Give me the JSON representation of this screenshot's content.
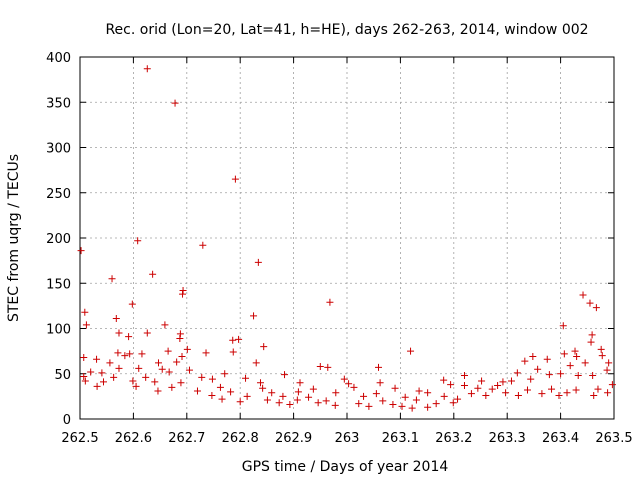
{
  "chart_data": {
    "type": "scatter",
    "title": "Rec. orid (Lon=20, Lat=41, h=HE), days 262-263, 2014, window 002",
    "xlabel": "GPS time / Days of year 2014",
    "ylabel": "STEC from uqrg / TECUs",
    "xlim": [
      262.5,
      263.5
    ],
    "ylim": [
      0,
      400
    ],
    "x_ticks": [
      262.5,
      262.6,
      262.7,
      262.8,
      262.9,
      263.0,
      263.1,
      263.2,
      263.3,
      263.4,
      263.5
    ],
    "x_tick_labels": [
      "262.5",
      "262.6",
      "262.7",
      "262.8",
      "262.9",
      "263",
      "263.1",
      "263.2",
      "263.3",
      "263.4",
      "263.5"
    ],
    "y_ticks": [
      0,
      50,
      100,
      150,
      200,
      250,
      300,
      350,
      400
    ],
    "y_tick_labels": [
      "0",
      "50",
      "100",
      "150",
      "200",
      "250",
      "300",
      "350",
      "400"
    ],
    "grid": true,
    "marker": "+",
    "color": "#cc0000",
    "points": [
      [
        262.626,
        387
      ],
      [
        262.678,
        349
      ],
      [
        262.791,
        265
      ],
      [
        262.608,
        197
      ],
      [
        262.73,
        192
      ],
      [
        262.502,
        186
      ],
      [
        262.834,
        173
      ],
      [
        262.636,
        160
      ],
      [
        262.56,
        155
      ],
      [
        262.693,
        142
      ],
      [
        262.692,
        138
      ],
      [
        263.442,
        137
      ],
      [
        263.455,
        128
      ],
      [
        262.968,
        129
      ],
      [
        262.598,
        127
      ],
      [
        263.467,
        123
      ],
      [
        262.509,
        118
      ],
      [
        262.825,
        114
      ],
      [
        262.568,
        111
      ],
      [
        263.405,
        103
      ],
      [
        262.659,
        104
      ],
      [
        262.512,
        104
      ],
      [
        262.573,
        95
      ],
      [
        262.626,
        95
      ],
      [
        262.688,
        94
      ],
      [
        263.459,
        93
      ],
      [
        262.591,
        91
      ],
      [
        262.687,
        89
      ],
      [
        262.797,
        88
      ],
      [
        262.786,
        87
      ],
      [
        263.457,
        85
      ],
      [
        262.844,
        80
      ],
      [
        262.701,
        77
      ],
      [
        263.476,
        77
      ],
      [
        262.665,
        75
      ],
      [
        262.736,
        73
      ],
      [
        262.787,
        74
      ],
      [
        263.119,
        75
      ],
      [
        263.427,
        75
      ],
      [
        262.571,
        73
      ],
      [
        262.593,
        72
      ],
      [
        262.616,
        72
      ],
      [
        263.407,
        72
      ],
      [
        262.584,
        70
      ],
      [
        262.691,
        69
      ],
      [
        263.478,
        70
      ],
      [
        263.348,
        69
      ],
      [
        263.43,
        69
      ],
      [
        262.507,
        68
      ],
      [
        262.531,
        66
      ],
      [
        263.375,
        66
      ],
      [
        263.333,
        64
      ],
      [
        263.446,
        62
      ],
      [
        262.556,
        62
      ],
      [
        262.647,
        62
      ],
      [
        262.681,
        63
      ],
      [
        262.83,
        62
      ],
      [
        263.49,
        62
      ],
      [
        262.964,
        57
      ],
      [
        262.95,
        58
      ],
      [
        263.059,
        57
      ],
      [
        263.418,
        59
      ],
      [
        262.573,
        56
      ],
      [
        262.61,
        56
      ],
      [
        262.654,
        55
      ],
      [
        262.705,
        54
      ],
      [
        263.357,
        55
      ],
      [
        263.487,
        54
      ],
      [
        262.52,
        52
      ],
      [
        262.541,
        51
      ],
      [
        262.667,
        52
      ],
      [
        263.319,
        51
      ],
      [
        262.771,
        50
      ],
      [
        262.883,
        49
      ],
      [
        263.22,
        48
      ],
      [
        263.379,
        49
      ],
      [
        263.4,
        50
      ],
      [
        263.433,
        48
      ],
      [
        263.46,
        48
      ],
      [
        262.507,
        47
      ],
      [
        262.563,
        46
      ],
      [
        262.623,
        46
      ],
      [
        262.728,
        46
      ],
      [
        262.748,
        44
      ],
      [
        262.81,
        45
      ],
      [
        262.995,
        44
      ],
      [
        263.181,
        43
      ],
      [
        263.252,
        42
      ],
      [
        263.292,
        41
      ],
      [
        263.308,
        42
      ],
      [
        263.344,
        44
      ],
      [
        262.51,
        42
      ],
      [
        262.544,
        41
      ],
      [
        262.599,
        42
      ],
      [
        262.64,
        41
      ],
      [
        262.689,
        40
      ],
      [
        262.838,
        40
      ],
      [
        262.912,
        40
      ],
      [
        263.003,
        39
      ],
      [
        263.062,
        40
      ],
      [
        263.194,
        38
      ],
      [
        263.22,
        37
      ],
      [
        263.282,
        37
      ],
      [
        263.497,
        38
      ],
      [
        262.532,
        36
      ],
      [
        262.605,
        36
      ],
      [
        262.672,
        35
      ],
      [
        262.763,
        35
      ],
      [
        262.842,
        34
      ],
      [
        262.937,
        33
      ],
      [
        263.013,
        35
      ],
      [
        263.09,
        34
      ],
      [
        263.135,
        31
      ],
      [
        263.245,
        34
      ],
      [
        263.272,
        33
      ],
      [
        263.338,
        32
      ],
      [
        263.383,
        33
      ],
      [
        263.429,
        32
      ],
      [
        263.47,
        33
      ],
      [
        262.646,
        31
      ],
      [
        262.72,
        31
      ],
      [
        262.782,
        30
      ],
      [
        262.859,
        29
      ],
      [
        262.909,
        30
      ],
      [
        262.979,
        29
      ],
      [
        263.055,
        28
      ],
      [
        263.151,
        29
      ],
      [
        263.233,
        28
      ],
      [
        263.297,
        29
      ],
      [
        263.365,
        28
      ],
      [
        263.412,
        29
      ],
      [
        263.488,
        29
      ],
      [
        262.747,
        26
      ],
      [
        262.813,
        25
      ],
      [
        262.88,
        25
      ],
      [
        262.928,
        24
      ],
      [
        263.031,
        25
      ],
      [
        263.109,
        24
      ],
      [
        263.182,
        25
      ],
      [
        263.26,
        26
      ],
      [
        263.321,
        26
      ],
      [
        263.397,
        26
      ],
      [
        263.462,
        26
      ],
      [
        262.766,
        22
      ],
      [
        262.851,
        21
      ],
      [
        262.907,
        21
      ],
      [
        262.961,
        20
      ],
      [
        263.067,
        20
      ],
      [
        263.13,
        21
      ],
      [
        263.207,
        22
      ],
      [
        262.8,
        19
      ],
      [
        262.873,
        18
      ],
      [
        262.946,
        18
      ],
      [
        263.022,
        17
      ],
      [
        263.086,
        16
      ],
      [
        263.167,
        17
      ],
      [
        263.199,
        18
      ],
      [
        262.893,
        16
      ],
      [
        262.978,
        15
      ],
      [
        263.041,
        14
      ],
      [
        263.103,
        14
      ],
      [
        263.151,
        13
      ],
      [
        263.122,
        12
      ]
    ]
  }
}
